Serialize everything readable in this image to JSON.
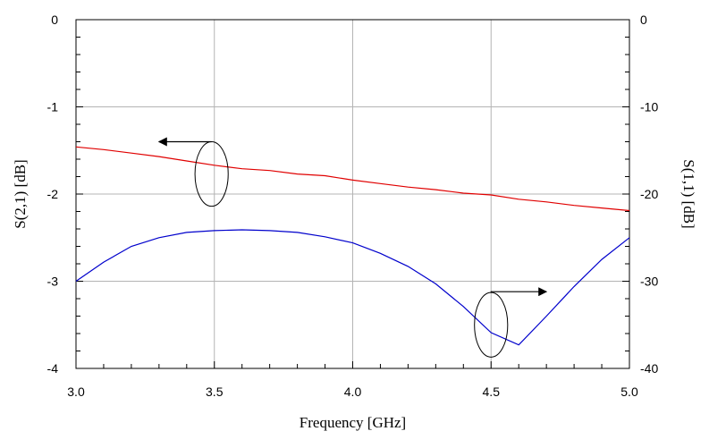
{
  "chart_data": {
    "type": "line",
    "title": "",
    "xlabel": "Frequency [GHz]",
    "ylabel_left": "S(2,1) [dB]",
    "ylabel_right": "S(1,1) [dB]",
    "xlim": [
      3.0,
      5.0
    ],
    "ylim_left": [
      -4,
      0
    ],
    "ylim_right": [
      -40,
      0
    ],
    "grid": true,
    "x_ticks": [
      3.0,
      3.5,
      4.0,
      4.5,
      5.0
    ],
    "x_tick_labels": [
      "3.0",
      "3.5",
      "4.0",
      "4.5",
      "5.0"
    ],
    "y_left_ticks": [
      0,
      -1,
      -2,
      -3,
      -4
    ],
    "y_left_tick_labels": [
      "0",
      "-1",
      "-2",
      "-3",
      "-4"
    ],
    "y_right_ticks": [
      0,
      -10,
      -20,
      -30,
      -40
    ],
    "y_right_tick_labels": [
      "0",
      "-10",
      "-20",
      "-30",
      "-40"
    ],
    "series": [
      {
        "axis": "left",
        "color": "#e00000",
        "x": [
          3.0,
          3.1,
          3.2,
          3.3,
          3.4,
          3.5,
          3.6,
          3.7,
          3.8,
          3.9,
          4.0,
          4.1,
          4.2,
          4.3,
          4.4,
          4.5,
          4.6,
          4.7,
          4.8,
          4.9,
          5.0
        ],
        "values": [
          -1.46,
          -1.49,
          -1.53,
          -1.57,
          -1.62,
          -1.67,
          -1.71,
          -1.73,
          -1.77,
          -1.79,
          -1.84,
          -1.88,
          -1.92,
          -1.95,
          -1.99,
          -2.01,
          -2.06,
          -2.09,
          -2.13,
          -2.16,
          -2.19
        ]
      },
      {
        "axis": "right",
        "color": "#0000cc",
        "x": [
          3.0,
          3.1,
          3.2,
          3.3,
          3.4,
          3.5,
          3.6,
          3.7,
          3.8,
          3.9,
          4.0,
          4.1,
          4.2,
          4.3,
          4.4,
          4.5,
          4.6,
          4.7,
          4.8,
          4.9,
          5.0
        ],
        "values": [
          -30.0,
          -27.8,
          -26.0,
          -25.0,
          -24.4,
          -24.2,
          -24.1,
          -24.2,
          -24.4,
          -24.9,
          -25.6,
          -26.8,
          -28.3,
          -30.3,
          -32.9,
          -35.9,
          -37.3,
          -34.0,
          -30.6,
          -27.5,
          -25.0
        ]
      }
    ],
    "annotations": [
      {
        "type": "ellipse",
        "x": 3.49,
        "y": -1.77,
        "rx": 0.06,
        "ry": 0.37,
        "axis": "left",
        "arrow": {
          "to_x": 3.3,
          "to_y": -1.4
        }
      },
      {
        "type": "ellipse",
        "x": 4.5,
        "y": -35.0,
        "rx": 0.06,
        "ry": 3.7,
        "axis": "right",
        "arrow": {
          "to_x": 4.7,
          "to_y": -31.2
        }
      }
    ]
  }
}
